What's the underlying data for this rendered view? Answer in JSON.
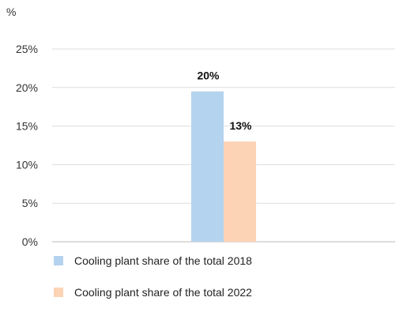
{
  "chart_data": {
    "type": "bar",
    "unit_label": "%",
    "categories": [
      ""
    ],
    "series": [
      {
        "name": "Cooling plant share of the total 2018",
        "values": [
          19.5
        ],
        "label": "20%",
        "color": "#b4d3ee"
      },
      {
        "name": "Cooling plant share of the total 2022",
        "values": [
          13
        ],
        "label": "13%",
        "color": "#fcd3b4"
      }
    ],
    "yticks": [
      "0%",
      "5%",
      "10%",
      "15%",
      "20%",
      "25%"
    ],
    "ylim": [
      0,
      25
    ],
    "grid": true,
    "legend": "bottom"
  }
}
